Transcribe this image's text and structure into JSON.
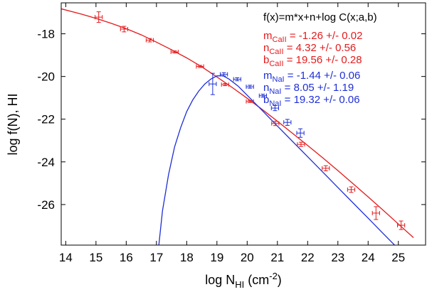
{
  "chart_data": {
    "type": "scatter",
    "title": "",
    "xlabel": {
      "main": "log N",
      "sub": "HI",
      "unit_pre": " (cm",
      "unit_sup": "-2",
      "unit_post": ")"
    },
    "ylabel": "log f(N), HI",
    "xlim": [
      13.85,
      25.9
    ],
    "ylim": [
      -27.9,
      -16.55
    ],
    "xticks": [
      14,
      15,
      16,
      17,
      18,
      19,
      20,
      21,
      22,
      23,
      24,
      25
    ],
    "yticks": [
      -18,
      -20,
      -22,
      -24,
      -26
    ],
    "grid": false,
    "formula": "f(x)=m*x+n+log C(x;a,b)",
    "colors": {
      "CaII": "#e41a1c",
      "NaI": "#1f2fd6",
      "axis": "#000000"
    },
    "fits": [
      {
        "sym": "m",
        "sub": "CaII",
        "text": " = -1.26 +/- 0.02",
        "color": "#e41a1c"
      },
      {
        "sym": "n",
        "sub": "CaII",
        "text": " = 4.32 +/- 0.56",
        "color": "#e41a1c"
      },
      {
        "sym": "b",
        "sub": "CaII",
        "text": " = 19.56 +/- 0.28",
        "color": "#e41a1c"
      },
      {
        "sym": "m",
        "sub": "NaI",
        "text": " = -1.44 +/- 0.06",
        "color": "#1f2fd6"
      },
      {
        "sym": "n",
        "sub": "NaI",
        "text": " = 8.05 +/- 1.19",
        "color": "#1f2fd6"
      },
      {
        "sym": "b",
        "sub": "NaI",
        "text": " = 19.32 +/- 0.06",
        "color": "#1f2fd6"
      }
    ],
    "series": [
      {
        "name": "CaII",
        "color": "#e41a1c",
        "points": [
          {
            "x": 15.09,
            "y": -17.22,
            "xerr": 0.12,
            "yerr": 0.25
          },
          {
            "x": 15.93,
            "y": -17.78,
            "xerr": 0.12,
            "yerr": 0.13
          },
          {
            "x": 16.78,
            "y": -18.3,
            "xerr": 0.12,
            "yerr": 0.08
          },
          {
            "x": 17.6,
            "y": -18.85,
            "xerr": 0.12,
            "yerr": 0.05
          },
          {
            "x": 18.44,
            "y": -19.53,
            "xerr": 0.12,
            "yerr": 0.05
          },
          {
            "x": 19.27,
            "y": -20.38,
            "xerr": 0.12,
            "yerr": 0.05
          },
          {
            "x": 20.09,
            "y": -21.17,
            "xerr": 0.12,
            "yerr": 0.05
          },
          {
            "x": 20.93,
            "y": -22.2,
            "xerr": 0.12,
            "yerr": 0.1
          },
          {
            "x": 21.78,
            "y": -23.18,
            "xerr": 0.12,
            "yerr": 0.1
          },
          {
            "x": 22.6,
            "y": -24.3,
            "xerr": 0.12,
            "yerr": 0.12
          },
          {
            "x": 23.44,
            "y": -25.3,
            "xerr": 0.12,
            "yerr": 0.13
          },
          {
            "x": 24.26,
            "y": -26.4,
            "xerr": 0.12,
            "yerr": 0.3
          },
          {
            "x": 25.09,
            "y": -26.97,
            "xerr": 0.12,
            "yerr": 0.2
          }
        ],
        "curve": {
          "x": [
            13.85,
            14.5,
            15.0,
            15.5,
            16.0,
            16.5,
            17.0,
            17.5,
            18.0,
            18.5,
            19.0,
            19.5,
            20.0,
            20.5,
            21.0,
            21.5,
            22.0,
            22.5,
            23.0,
            23.5,
            24.0,
            24.5,
            25.0,
            25.5
          ],
          "y": [
            -16.83,
            -17.07,
            -17.28,
            -17.51,
            -17.76,
            -18.05,
            -18.39,
            -18.75,
            -19.13,
            -19.55,
            -20.02,
            -20.51,
            -21.02,
            -21.55,
            -22.1,
            -22.66,
            -23.23,
            -23.81,
            -24.41,
            -25.02,
            -25.64,
            -26.27,
            -26.91,
            -27.55
          ]
        }
      },
      {
        "name": "NaI",
        "color": "#1f2fd6",
        "points": [
          {
            "x": 18.86,
            "y": -20.35,
            "xerr": 0.12,
            "yerr": 0.5
          },
          {
            "x": 19.23,
            "y": -19.9,
            "xerr": 0.12,
            "yerr": 0.08
          },
          {
            "x": 19.67,
            "y": -20.13,
            "xerr": 0.12,
            "yerr": 0.07
          },
          {
            "x": 20.09,
            "y": -20.48,
            "xerr": 0.12,
            "yerr": 0.07
          },
          {
            "x": 20.52,
            "y": -20.9,
            "xerr": 0.12,
            "yerr": 0.07
          },
          {
            "x": 20.92,
            "y": -21.48,
            "xerr": 0.12,
            "yerr": 0.12
          },
          {
            "x": 21.33,
            "y": -22.15,
            "xerr": 0.12,
            "yerr": 0.14
          },
          {
            "x": 21.76,
            "y": -22.65,
            "xerr": 0.12,
            "yerr": 0.2
          }
        ],
        "curve": {
          "x": [
            17.08,
            17.2,
            17.4,
            17.6,
            17.8,
            18.0,
            18.2,
            18.4,
            18.6,
            18.8,
            19.0,
            19.2,
            19.4,
            19.7,
            20.0,
            20.5,
            21.0,
            21.5,
            22.0,
            22.5,
            23.0,
            23.5,
            24.0,
            24.5,
            25.0,
            25.15
          ],
          "y": [
            -27.9,
            -26.3,
            -24.6,
            -23.3,
            -22.4,
            -21.65,
            -21.1,
            -20.68,
            -20.35,
            -20.12,
            -19.97,
            -19.96,
            -20.12,
            -20.45,
            -20.88,
            -21.6,
            -22.32,
            -23.04,
            -23.76,
            -24.48,
            -25.2,
            -25.92,
            -26.64,
            -27.36,
            -28.08,
            -28.3
          ]
        }
      }
    ]
  }
}
